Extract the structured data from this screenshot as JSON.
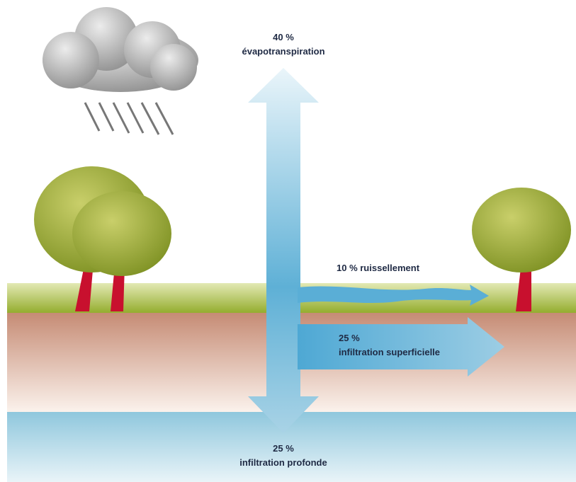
{
  "flows": [
    {
      "percent": "40 %",
      "label": "évapotranspiration"
    },
    {
      "text": "10 % ruissellement"
    },
    {
      "percent": "25 %",
      "label": "infiltration superficielle"
    },
    {
      "percent": "25 %",
      "label": "infiltration profonde"
    }
  ]
}
